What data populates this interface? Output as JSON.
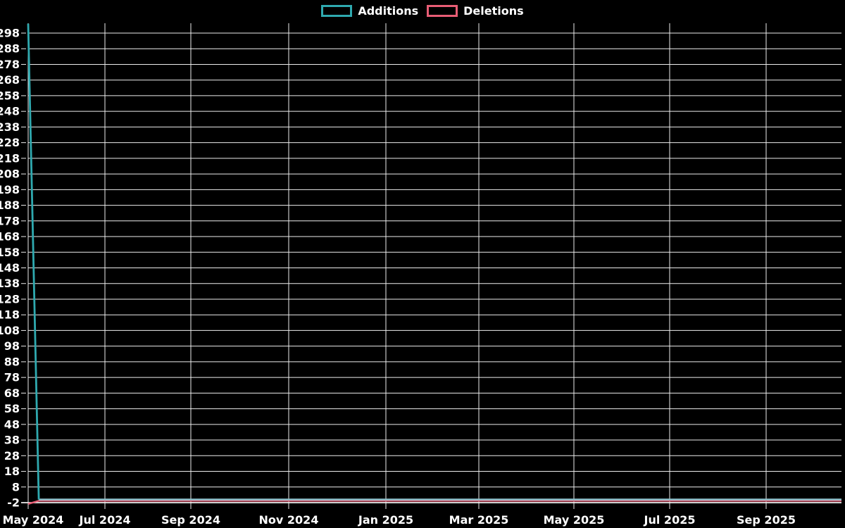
{
  "legend": {
    "items": [
      {
        "label": "Additions",
        "color": "#2fa9af"
      },
      {
        "label": "Deletions",
        "color": "#e85d75"
      }
    ]
  },
  "chart_data": {
    "type": "line",
    "title": "",
    "xlabel": "",
    "ylabel": "",
    "background": "#000000",
    "grid": true,
    "legend_position": "top-center",
    "x_tick_labels": [
      "May 2024",
      "Jul 2024",
      "Sep 2024",
      "Nov 2024",
      "Jan 2025",
      "Mar 2025",
      "May 2025",
      "Jul 2025",
      "Sep 2025"
    ],
    "x_range": [
      "2024-05-01",
      "2025-10-19"
    ],
    "y_ticks": {
      "min": -2,
      "max": 298,
      "step": 10
    },
    "ylim": [
      -2,
      304
    ],
    "colors": {
      "additions": "#2fa9af",
      "additions_flat": "#8fc0ca",
      "deletions": "#e85d75",
      "grid": "#ededed",
      "text": "#ffffff"
    },
    "series": [
      {
        "name": "Additions",
        "color": "#2fa9af",
        "x": [
          "2024-05-01",
          "2024-05-08",
          "2025-10-19"
        ],
        "values": [
          304,
          0,
          0
        ]
      },
      {
        "name": "Deletions",
        "color": "#e85d75",
        "x": [
          "2024-05-01",
          "2024-05-08",
          "2025-10-19"
        ],
        "values": [
          -2,
          0,
          0
        ]
      }
    ]
  }
}
